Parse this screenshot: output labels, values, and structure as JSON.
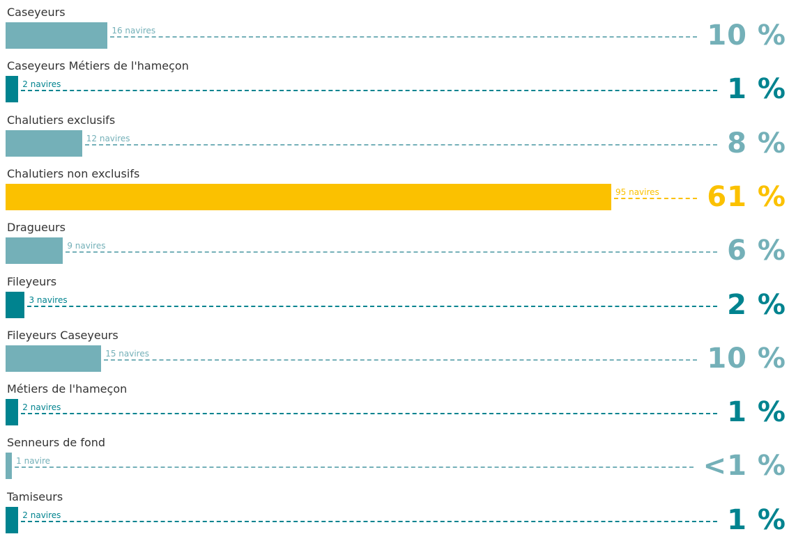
{
  "colors": {
    "dark": "#00838f",
    "light": "#74b0b8",
    "highlight": "#fbc100",
    "text": "#333333"
  },
  "chart_data": {
    "type": "bar",
    "orientation": "horizontal",
    "categories": [
      "Caseyeurs",
      "Caseyeurs Métiers de l'hameçon",
      "Chalutiers exclusifs",
      "Chalutiers non exclusifs",
      "Dragueurs",
      "Fileyeurs",
      "Fileyeurs Caseyeurs",
      "Métiers de l'hameçon",
      "Senneurs de fond",
      "Tamiseurs"
    ],
    "values": [
      16,
      2,
      12,
      95,
      9,
      3,
      15,
      2,
      1,
      2
    ],
    "count_labels": [
      "16 navires",
      "2 navires",
      "12 navires",
      "95 navires",
      "9 navires",
      "3 navires",
      "15 navires",
      "2 navires",
      "1 navire",
      "2 navires"
    ],
    "percent_labels": [
      "10 %",
      "1 %",
      "8 %",
      "61 %",
      "6 %",
      "2 %",
      "10 %",
      "1 %",
      "<1 %",
      "1 %"
    ],
    "bar_colors": [
      "light",
      "dark",
      "light",
      "highlight",
      "light",
      "dark",
      "light",
      "dark",
      "light",
      "dark"
    ],
    "xlim": [
      0,
      95
    ],
    "grid": false,
    "legend": "none"
  }
}
